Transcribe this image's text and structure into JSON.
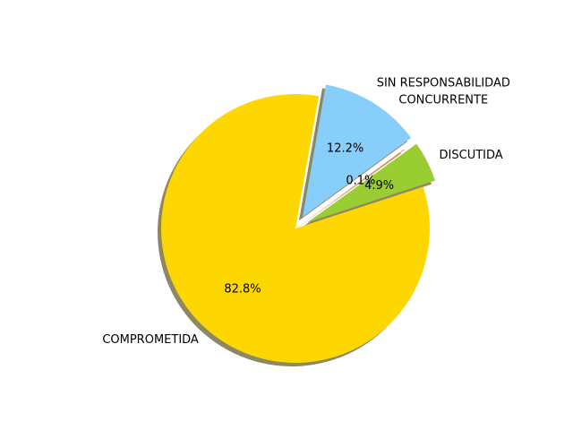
{
  "chart_data": {
    "type": "pie",
    "slices": [
      {
        "label": "COMPROMETIDA",
        "value": 82.8,
        "pct_label": "82.8%",
        "color": "#ffd700",
        "exploded": false
      },
      {
        "label": "DISCUTIDA",
        "value": 4.9,
        "pct_label": "4.9%",
        "color": "#9acd32",
        "exploded": true
      },
      {
        "label": "",
        "value": 0.1,
        "pct_label": "0.1%",
        "color": "#ff7f50",
        "exploded": false
      },
      {
        "label": "SIN RESPONSABILIDAD\nCONCURRENTE",
        "value": 12.2,
        "pct_label": "12.2%",
        "color": "#87cefa",
        "exploded": true
      }
    ],
    "shadow": true,
    "legend": false
  }
}
